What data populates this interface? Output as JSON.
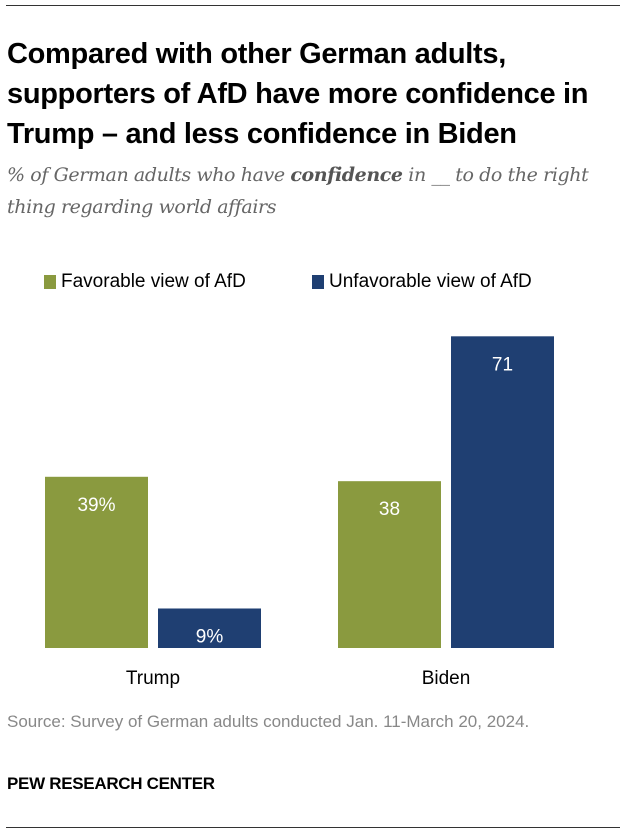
{
  "chart_data": {
    "type": "bar",
    "title": "Compared with other German adults, supporters of AfD have more confidence in Trump – and less confidence in Biden",
    "subtitle_parts": [
      "% of German adults who have ",
      "confidence",
      " in __ to do the right thing regarding world affairs"
    ],
    "categories": [
      "Trump",
      "Biden"
    ],
    "series": [
      {
        "name": "Favorable view of AfD",
        "values": [
          39,
          38
        ],
        "labels": [
          "39%",
          "38"
        ],
        "color": "#8a9a3f"
      },
      {
        "name": "Unfavorable view of AfD",
        "values": [
          9,
          71
        ],
        "labels": [
          "9%",
          "71"
        ],
        "color": "#1f3f72"
      }
    ],
    "ylim": [
      0,
      75
    ],
    "grid": false,
    "legend": "top-left",
    "source": "Source: Survey of German adults conducted Jan. 11-March 20, 2024.",
    "brand": "PEW RESEARCH CENTER"
  }
}
